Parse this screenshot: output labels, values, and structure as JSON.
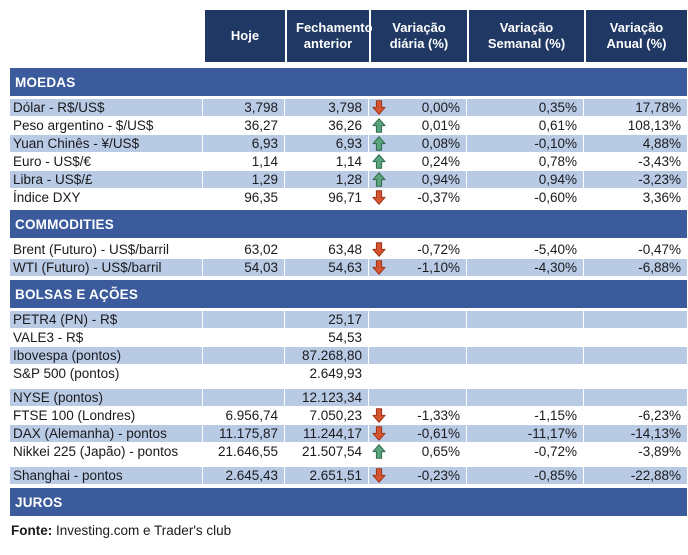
{
  "header": {
    "columns": [
      "Hoje",
      "Fechamento anterior",
      "Variação diária (%)",
      "Variação Semanal (%)",
      "Variação Anual (%)"
    ]
  },
  "sections": [
    {
      "title": "MOEDAS",
      "rows": [
        {
          "label": "Dólar - R$/US$",
          "hoje": "3,798",
          "fechamento": "3,798",
          "arrow": "down",
          "variacao_diaria": "0,00%",
          "variacao_semanal": "0,35%",
          "variacao_anual": "17,78%",
          "shaded": true
        },
        {
          "label": "Peso argentino - $/US$",
          "hoje": "36,27",
          "fechamento": "36,26",
          "arrow": "up",
          "variacao_diaria": "0,01%",
          "variacao_semanal": "0,61%",
          "variacao_anual": "108,13%",
          "shaded": false
        },
        {
          "label": "Yuan Chinês - ¥/US$",
          "hoje": "6,93",
          "fechamento": "6,93",
          "arrow": "up",
          "variacao_diaria": "0,08%",
          "variacao_semanal": "-0,10%",
          "variacao_anual": "4,88%",
          "shaded": true
        },
        {
          "label": "Euro - US$/€",
          "hoje": "1,14",
          "fechamento": "1,14",
          "arrow": "up",
          "variacao_diaria": "0,24%",
          "variacao_semanal": "0,78%",
          "variacao_anual": "-3,43%",
          "shaded": false
        },
        {
          "label": "Libra - US$/£",
          "hoje": "1,29",
          "fechamento": "1,28",
          "arrow": "up",
          "variacao_diaria": "0,94%",
          "variacao_semanal": "0,94%",
          "variacao_anual": "-3,23%",
          "shaded": true
        },
        {
          "label": "Índice DXY",
          "hoje": "96,35",
          "fechamento": "96,71",
          "arrow": "down",
          "variacao_diaria": "-0,37%",
          "variacao_semanal": "-0,60%",
          "variacao_anual": "3,36%",
          "shaded": false
        }
      ]
    },
    {
      "title": "COMMODITIES",
      "rows": [
        {
          "label": "Brent (Futuro) - US$/barril",
          "hoje": "63,02",
          "fechamento": "63,48",
          "arrow": "down",
          "variacao_diaria": "-0,72%",
          "variacao_semanal": "-5,40%",
          "variacao_anual": "-0,47%",
          "shaded": false
        },
        {
          "label": "WTI (Futuro) - US$/barril",
          "hoje": "54,03",
          "fechamento": "54,63",
          "arrow": "down",
          "variacao_diaria": "-1,10%",
          "variacao_semanal": "-4,30%",
          "variacao_anual": "-6,88%",
          "shaded": true
        }
      ]
    },
    {
      "title": "BOLSAS E AÇÕES",
      "rows": [
        {
          "label": "PETR4 (PN) - R$",
          "hoje": "",
          "fechamento": "25,17",
          "arrow": "",
          "variacao_diaria": "",
          "variacao_semanal": "",
          "variacao_anual": "",
          "shaded": true
        },
        {
          "label": "VALE3 - R$",
          "hoje": "",
          "fechamento": "54,53",
          "arrow": "",
          "variacao_diaria": "",
          "variacao_semanal": "",
          "variacao_anual": "",
          "shaded": false
        },
        {
          "label": "Ibovespa (pontos)",
          "hoje": "",
          "fechamento": "87.268,80",
          "arrow": "",
          "variacao_diaria": "",
          "variacao_semanal": "",
          "variacao_anual": "",
          "shaded": true
        },
        {
          "label": "S&P 500 (pontos)",
          "hoje": "",
          "fechamento": "2.649,93",
          "arrow": "",
          "variacao_diaria": "",
          "variacao_semanal": "",
          "variacao_anual": "",
          "shaded": false,
          "gap_after": true
        },
        {
          "label": "NYSE (pontos)",
          "hoje": "",
          "fechamento": "12.123,34",
          "arrow": "",
          "variacao_diaria": "",
          "variacao_semanal": "",
          "variacao_anual": "",
          "shaded": true
        },
        {
          "label": "FTSE 100 (Londres)",
          "hoje": "6.956,74",
          "fechamento": "7.050,23",
          "arrow": "down",
          "variacao_diaria": "-1,33%",
          "variacao_semanal": "-1,15%",
          "variacao_anual": "-6,23%",
          "shaded": false
        },
        {
          "label": "DAX (Alemanha) - pontos",
          "hoje": "11.175,87",
          "fechamento": "11.244,17",
          "arrow": "down",
          "variacao_diaria": "-0,61%",
          "variacao_semanal": "-11,17%",
          "variacao_anual": "-14,13%",
          "shaded": true
        },
        {
          "label": "Nikkei 225 (Japão) - pontos",
          "hoje": "21.646,55",
          "fechamento": "21.507,54",
          "arrow": "up",
          "variacao_diaria": "0,65%",
          "variacao_semanal": "-0,72%",
          "variacao_anual": "-3,89%",
          "shaded": false,
          "gap_after": true
        },
        {
          "label": "Shanghai - pontos",
          "hoje": "2.645,43",
          "fechamento": "2.651,51",
          "arrow": "down",
          "variacao_diaria": "-0,23%",
          "variacao_semanal": "-0,85%",
          "variacao_anual": "-22,88%",
          "shaded": true
        }
      ]
    },
    {
      "title": "JUROS",
      "rows": []
    }
  ],
  "footer": {
    "source_label": "Fonte:",
    "source_text": " Investing.com e Trader's club"
  },
  "colors": {
    "header_bg": "#1F3864",
    "section_bg": "#3B5B9C",
    "row_shaded_bg": "#B9CBE4",
    "arrow_up": "#5AA37C",
    "arrow_up_border": "#2F6B4D",
    "arrow_down": "#D4552F",
    "arrow_down_border": "#9C3417"
  },
  "icons": {
    "up": "up-arrow-icon",
    "down": "down-arrow-icon"
  }
}
